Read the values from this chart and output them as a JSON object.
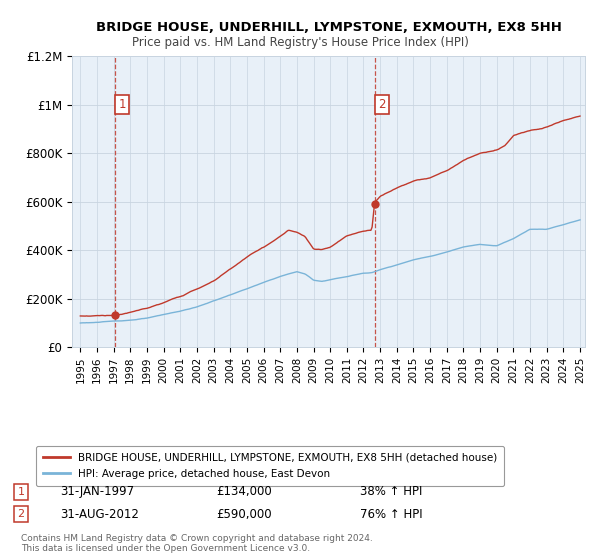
{
  "title": "BRIDGE HOUSE, UNDERHILL, LYMPSTONE, EXMOUTH, EX8 5HH",
  "subtitle": "Price paid vs. HM Land Registry's House Price Index (HPI)",
  "background_color": "#e8f0f8",
  "plot_bg_color": "#e8f0f8",
  "ylim": [
    0,
    1200000
  ],
  "yticks": [
    0,
    200000,
    400000,
    600000,
    800000,
    1000000,
    1200000
  ],
  "ytick_labels": [
    "£0",
    "£200K",
    "£400K",
    "£600K",
    "£800K",
    "£1M",
    "£1.2M"
  ],
  "legend_line1": "BRIDGE HOUSE, UNDERHILL, LYMPSTONE, EXMOUTH, EX8 5HH (detached house)",
  "legend_line2": "HPI: Average price, detached house, East Devon",
  "sale1_date": "31-JAN-1997",
  "sale1_price": 134000,
  "sale1_pct": "38% ↑ HPI",
  "sale2_date": "31-AUG-2012",
  "sale2_price": 590000,
  "sale2_pct": "76% ↑ HPI",
  "footnote": "Contains HM Land Registry data © Crown copyright and database right 2024.\nThis data is licensed under the Open Government Licence v3.0.",
  "hpi_color": "#7ab4d8",
  "price_color": "#c0392b",
  "vline_color": "#c0392b",
  "grid_color": "#c8d4e0",
  "x_start_year": 1995,
  "x_end_year": 2025,
  "sale1_x": 1997.08,
  "sale2_x": 2012.67
}
